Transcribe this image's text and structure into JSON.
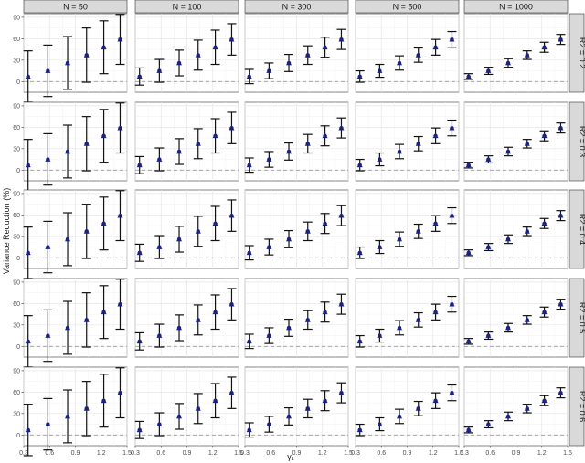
{
  "chart_data": {
    "type": "scatter",
    "title": "",
    "ylabel": "Variance Reduction (%)",
    "xlabel": "γ₁",
    "x_ticks": [
      0.3,
      0.6,
      0.9,
      1.2,
      1.5
    ],
    "x_tick_labels": [
      "0.3",
      "0.6",
      "0.9",
      "1.2",
      "1.5"
    ],
    "y_ticks": [
      0,
      30,
      60,
      90
    ],
    "y_tick_labels": [
      "0",
      "30",
      "60",
      "90"
    ],
    "xlim": [
      0.3,
      1.5
    ],
    "ylim": [
      -15,
      95
    ],
    "reference_line_y": 0,
    "grid": true,
    "point_color": "#1a237e",
    "columns": [
      "N = 50",
      "N = 100",
      "N = 300",
      "N = 500",
      "N = 1000"
    ],
    "rows": [
      "R2 = 0.2",
      "R2 = 0.3",
      "R2 = 0.4",
      "R2 = 0.5",
      "R2 = 0.6"
    ],
    "x": [
      0.35,
      0.58,
      0.81,
      1.03,
      1.23,
      1.42
    ],
    "mean": [
      7,
      15,
      26,
      37,
      48,
      59
    ],
    "interval_half_width": {
      "N = 50": [
        36,
        36,
        37,
        38,
        37,
        35
      ],
      "N = 100": [
        12,
        16,
        18,
        21,
        24,
        22
      ],
      "N = 300": [
        10,
        11,
        12,
        13,
        14,
        14
      ],
      "N = 500": [
        8,
        9,
        10,
        10,
        11,
        11
      ],
      "N = 1000": [
        4,
        5,
        6,
        6,
        7,
        7
      ]
    }
  }
}
